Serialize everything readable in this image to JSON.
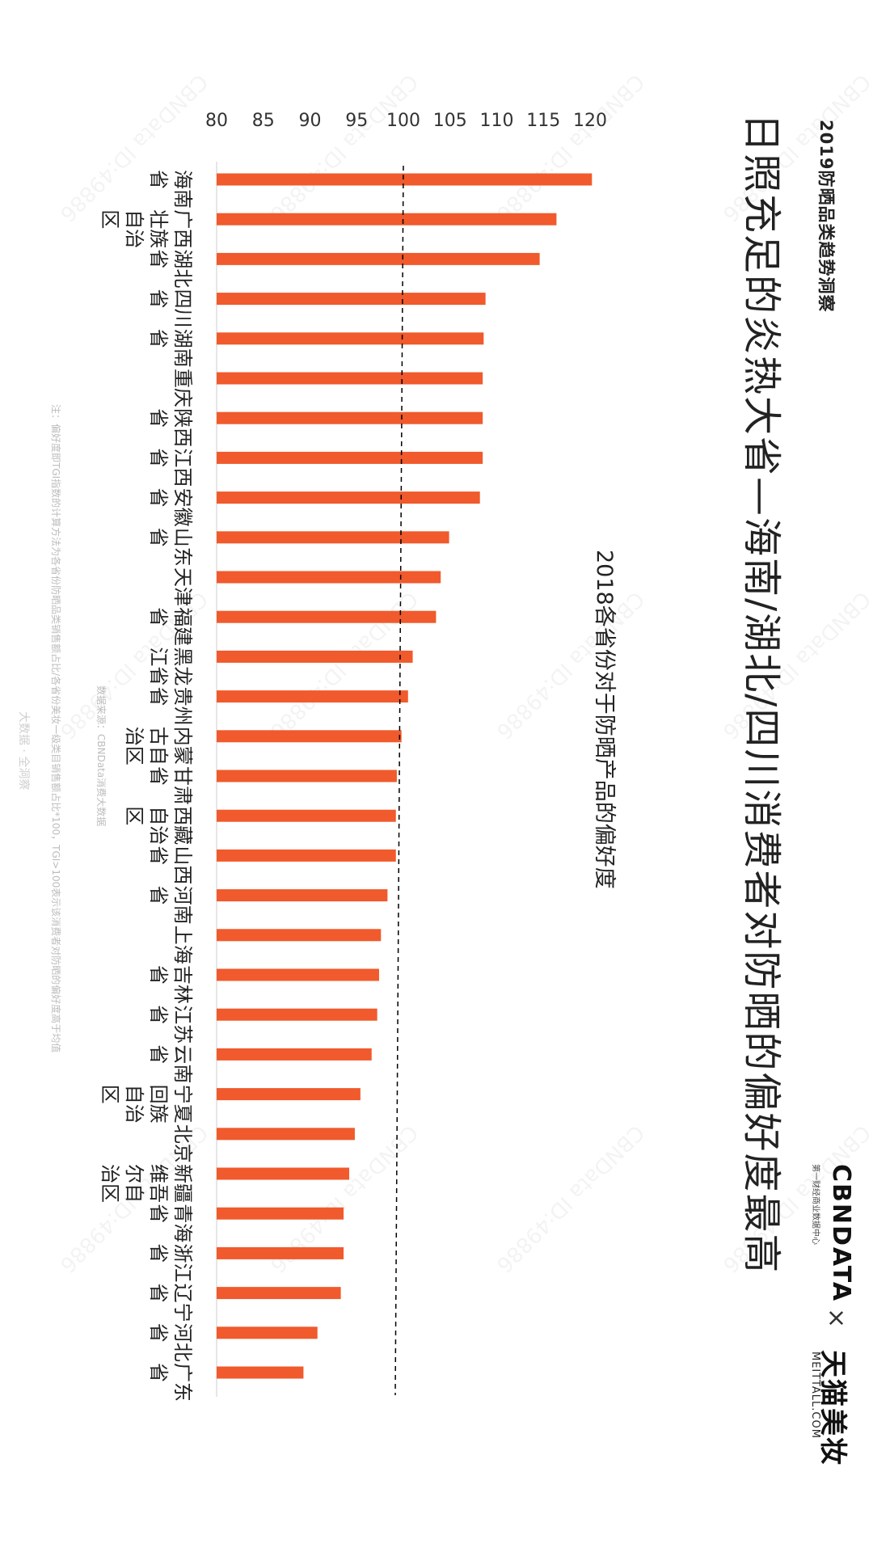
{
  "header": {
    "sup_title": "2019防晒品类趋势洞察",
    "main_title": "日照充足的炎热大省—海南/湖北/四川消费者对防晒的偏好度最高",
    "sub_title": "2018各省份对于防晒产品的偏好度"
  },
  "brand": {
    "cbn": "CBNDATA",
    "cbn_sub": "第一财经商业数据中心",
    "tmall": "天猫美妆",
    "tmall_sub": "MEITTALL.COM"
  },
  "notes": {
    "note": "注：偏好度即TGI指数的计算方法为各省份防晒品类销售额占比/各省份美妆一级类目销售额占比*100，TGI>100表示该消费者对防晒的偏好度高于均值",
    "source": "数据来源：CBNData消费大数据",
    "footer": "大数据 · 全洞察"
  },
  "watermark": "CBNData ID:49886",
  "colors": {
    "bar": "#f05a2c",
    "axis": "#cccccc",
    "reference": "#000000",
    "text": "#222222"
  },
  "chart_data": {
    "type": "bar",
    "orientation": "vertical",
    "title": "2018各省份对于防晒产品的偏好度",
    "xlabel": "",
    "ylabel": "",
    "ylim": [
      80,
      121
    ],
    "yticks": [
      80,
      85,
      90,
      95,
      100,
      105,
      110,
      115,
      120
    ],
    "reference_line": 100,
    "grid": false,
    "categories": [
      "海南省",
      "广西壮族自治区",
      "湖北省",
      "四川省",
      "湖南省",
      "重庆",
      "陕西省",
      "江西省",
      "安徽省",
      "山东省",
      "天津",
      "福建省",
      "黑龙江省",
      "贵州省",
      "内蒙古自治区",
      "甘肃省",
      "西藏自治区",
      "山西省",
      "河南省",
      "上海",
      "吉林省",
      "江苏省",
      "云南省",
      "宁夏回族自治区",
      "北京",
      "新疆维吾尔自治区",
      "青海省",
      "浙江省",
      "辽宁省",
      "河北省",
      "广东省"
    ],
    "values": [
      120.2,
      116.4,
      114.6,
      108.8,
      108.6,
      108.5,
      108.5,
      108.5,
      108.2,
      104.9,
      104.0,
      103.5,
      101.0,
      100.5,
      99.8,
      99.3,
      99.2,
      99.2,
      98.3,
      97.6,
      97.4,
      97.2,
      96.6,
      95.4,
      94.8,
      94.2,
      93.6,
      93.6,
      93.3,
      90.8,
      89.3
    ]
  }
}
